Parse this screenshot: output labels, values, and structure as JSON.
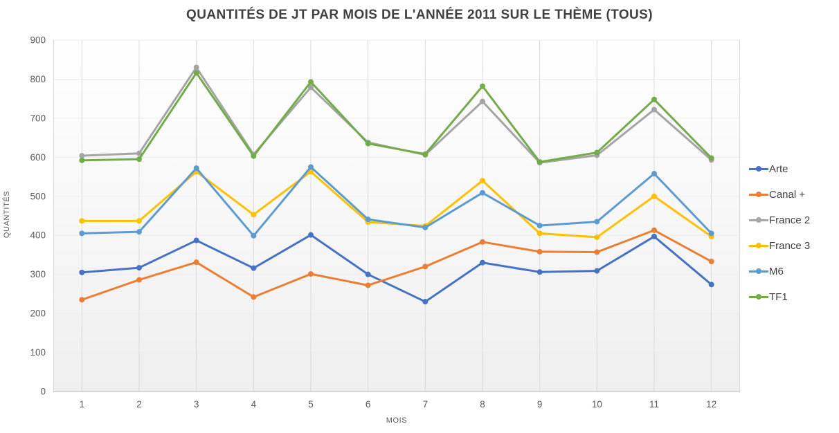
{
  "chart_data": {
    "type": "line",
    "title": "QUANTITÉS DE JT PAR MOIS DE L'ANNÉE 2011 SUR LE THÈME (TOUS)",
    "xlabel": "MOIS",
    "ylabel": "QUANTITÉS",
    "x": [
      1,
      2,
      3,
      4,
      5,
      6,
      7,
      8,
      9,
      10,
      11,
      12
    ],
    "ylim": [
      0,
      900
    ],
    "ytick_step": 100,
    "grid": {
      "vertical": true,
      "horizontal": false
    },
    "legend_position": "right",
    "series": [
      {
        "name": "Arte",
        "color": "#4472C4",
        "values": [
          305,
          317,
          387,
          316,
          401,
          300,
          230,
          330,
          306,
          309,
          397,
          274
        ]
      },
      {
        "name": "Canal +",
        "color": "#ED7D31",
        "values": [
          235,
          286,
          331,
          242,
          301,
          272,
          320,
          383,
          358,
          357,
          413,
          333
        ]
      },
      {
        "name": "France 2",
        "color": "#A5A5A5",
        "values": [
          604,
          610,
          830,
          607,
          779,
          638,
          606,
          743,
          586,
          605,
          722,
          593
        ]
      },
      {
        "name": "France 3",
        "color": "#FFC000",
        "values": [
          437,
          437,
          563,
          453,
          563,
          434,
          424,
          540,
          405,
          395,
          500,
          397
        ]
      },
      {
        "name": "M6",
        "color": "#5B9BD5",
        "values": [
          405,
          409,
          572,
          399,
          575,
          441,
          420,
          509,
          425,
          435,
          558,
          405
        ]
      },
      {
        "name": "TF1",
        "color": "#70AD47",
        "values": [
          592,
          595,
          816,
          603,
          793,
          635,
          608,
          782,
          588,
          612,
          748,
          598
        ]
      }
    ],
    "colors": {
      "title_text": "#404040",
      "axis_text": "#595959",
      "vertical_gridline": "#d9d9d9",
      "horizontal_gridline": "#ededed",
      "axis_line": "#bfbfbf",
      "plot_bg_top": "#ffffff",
      "plot_bg_bottom": "#efefef"
    }
  }
}
